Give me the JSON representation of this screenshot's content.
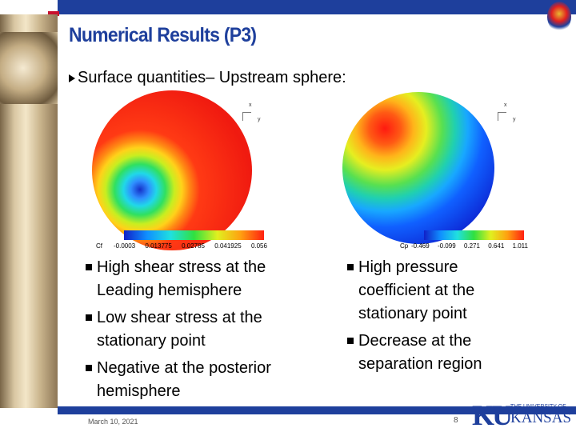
{
  "header": {
    "title": "Numerical Results (P3)"
  },
  "intro": "Surface quantities– Upstream sphere:",
  "figures": [
    {
      "variable": "Cf",
      "axes": [
        "x",
        "y"
      ],
      "ticks": [
        "-0.0003",
        "0.013775",
        "0.02785",
        "0.041925",
        "0.056"
      ]
    },
    {
      "variable": "Cp",
      "axes": [
        "x",
        "y"
      ],
      "ticks": [
        "-0.469",
        "-0.099",
        "0.271",
        "0.641",
        "1.011"
      ]
    }
  ],
  "left_bullets": [
    "High shear stress at the Leading hemisphere",
    "Low shear stress at the stationary point",
    "Negative at the posterior hemisphere"
  ],
  "right_bullets": [
    "High pressure coefficient at the stationary point",
    "Decrease at the separation region"
  ],
  "footer": {
    "date": "March 10, 2021",
    "page": "8"
  },
  "logo": {
    "letters": "KU",
    "line1": "THE UNIVERSITY OF",
    "line2": "KANSAS"
  }
}
